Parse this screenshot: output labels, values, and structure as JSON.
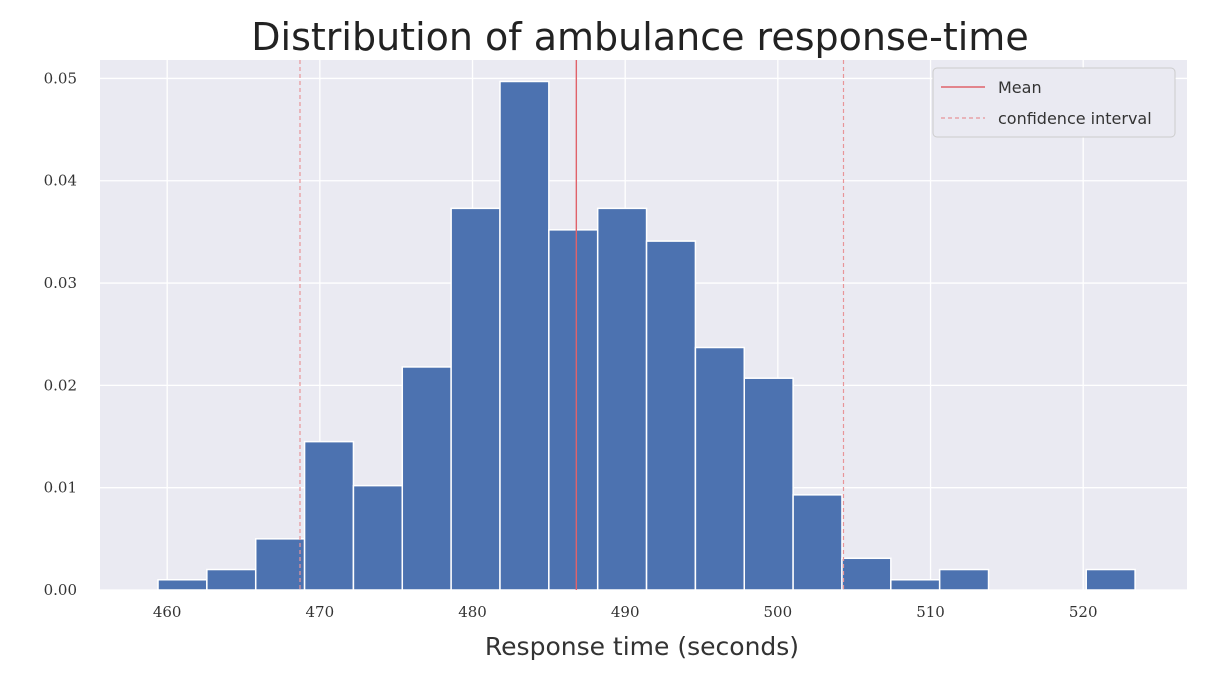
{
  "chart_data": {
    "type": "bar",
    "title": "Distribution of ambulance response-time",
    "xlabel": "Response time (seconds)",
    "ylabel": "",
    "xlim": [
      455.6,
      526.8
    ],
    "ylim": [
      0,
      0.0518
    ],
    "x_ticks": [
      460,
      470,
      480,
      490,
      500,
      510,
      520
    ],
    "x_tick_labels": [
      "460",
      "470",
      "480",
      "490",
      "500",
      "510",
      "520"
    ],
    "y_ticks": [
      0.0,
      0.01,
      0.02,
      0.03,
      0.04,
      0.05
    ],
    "y_tick_labels": [
      "0.00",
      "0.01",
      "0.02",
      "0.03",
      "0.04",
      "0.05"
    ],
    "bins": [
      {
        "start": 459.4,
        "end": 462.6,
        "value": 0.001
      },
      {
        "start": 462.6,
        "end": 465.8,
        "value": 0.002
      },
      {
        "start": 465.8,
        "end": 469.0,
        "value": 0.005
      },
      {
        "start": 469.0,
        "end": 472.2,
        "value": 0.0145
      },
      {
        "start": 472.2,
        "end": 475.4,
        "value": 0.0102
      },
      {
        "start": 475.4,
        "end": 478.6,
        "value": 0.0218
      },
      {
        "start": 478.6,
        "end": 481.8,
        "value": 0.0373
      },
      {
        "start": 481.8,
        "end": 485.0,
        "value": 0.0497
      },
      {
        "start": 485.0,
        "end": 488.2,
        "value": 0.0352
      },
      {
        "start": 488.2,
        "end": 491.4,
        "value": 0.0373
      },
      {
        "start": 491.4,
        "end": 494.6,
        "value": 0.0341
      },
      {
        "start": 494.6,
        "end": 497.8,
        "value": 0.0237
      },
      {
        "start": 497.8,
        "end": 501.0,
        "value": 0.0207
      },
      {
        "start": 501.0,
        "end": 504.2,
        "value": 0.0093
      },
      {
        "start": 504.2,
        "end": 507.4,
        "value": 0.0031
      },
      {
        "start": 507.4,
        "end": 510.6,
        "value": 0.001
      },
      {
        "start": 510.6,
        "end": 513.8,
        "value": 0.002
      },
      {
        "start": 513.8,
        "end": 517.0,
        "value": 0
      },
      {
        "start": 517.0,
        "end": 520.2,
        "value": 0
      },
      {
        "start": 520.2,
        "end": 523.4,
        "value": 0.002
      }
    ],
    "mean": 486.8,
    "confidence_interval": [
      468.7,
      504.3
    ],
    "legend": {
      "placement": "top-right",
      "entries": [
        {
          "label": "Mean",
          "style": "solid"
        },
        {
          "label": "confidence interval",
          "style": "dashed"
        }
      ]
    },
    "grid": true,
    "colors": {
      "bar": "#4c72b0",
      "bar_edge": "#ffffff",
      "background": "#eaeaf2",
      "grid": "#ffffff",
      "mean_line": "#e0626a",
      "ci_line": "#e89599"
    }
  }
}
